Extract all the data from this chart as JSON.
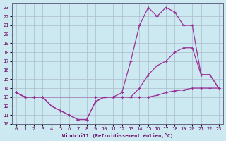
{
  "xlabel": "Windchill (Refroidissement éolien,°C)",
  "bg_color": "#cce8f0",
  "grid_color": "#aabbcc",
  "line_color": "#993399",
  "xlim": [
    -0.5,
    23.5
  ],
  "ylim": [
    10,
    23.5
  ],
  "xticks": [
    0,
    1,
    2,
    3,
    4,
    5,
    6,
    7,
    8,
    9,
    10,
    11,
    12,
    13,
    14,
    15,
    16,
    17,
    18,
    19,
    20,
    21,
    22,
    23
  ],
  "yticks": [
    10,
    11,
    12,
    13,
    14,
    15,
    16,
    17,
    18,
    19,
    20,
    21,
    22,
    23
  ],
  "line_bottom_x": [
    0,
    1,
    2,
    3,
    9,
    10,
    11,
    12,
    13,
    14,
    15,
    16,
    17,
    18,
    19,
    20,
    21,
    22,
    23
  ],
  "line_bottom_y": [
    13.5,
    13.0,
    13.0,
    13.0,
    13.0,
    13.0,
    13.0,
    13.0,
    13.0,
    13.0,
    13.0,
    13.2,
    13.5,
    13.7,
    13.8,
    14.0,
    14.0,
    14.0,
    14.0
  ],
  "line_mid_x": [
    0,
    1,
    2,
    3,
    4,
    5,
    6,
    7,
    8,
    9,
    10,
    11,
    12,
    13,
    14,
    15,
    16,
    17,
    18,
    19,
    20,
    21,
    22,
    23
  ],
  "line_mid_y": [
    13.5,
    13.0,
    13.0,
    13.0,
    12.0,
    11.5,
    11.0,
    10.5,
    10.5,
    12.5,
    13.0,
    13.0,
    13.0,
    13.0,
    14.0,
    15.5,
    16.5,
    17.0,
    18.0,
    18.5,
    18.5,
    15.5,
    15.5,
    14.0
  ],
  "line_top_x": [
    0,
    1,
    2,
    3,
    4,
    5,
    6,
    7,
    8,
    9,
    10,
    11,
    12,
    13,
    14,
    15,
    16,
    17,
    18,
    19,
    20,
    21,
    22,
    23
  ],
  "line_top_y": [
    13.5,
    13.0,
    13.0,
    13.0,
    12.0,
    11.5,
    11.0,
    10.5,
    10.5,
    12.5,
    13.0,
    13.0,
    13.5,
    17.0,
    21.0,
    23.0,
    22.0,
    23.0,
    22.5,
    21.0,
    21.0,
    15.5,
    15.5,
    14.0
  ]
}
